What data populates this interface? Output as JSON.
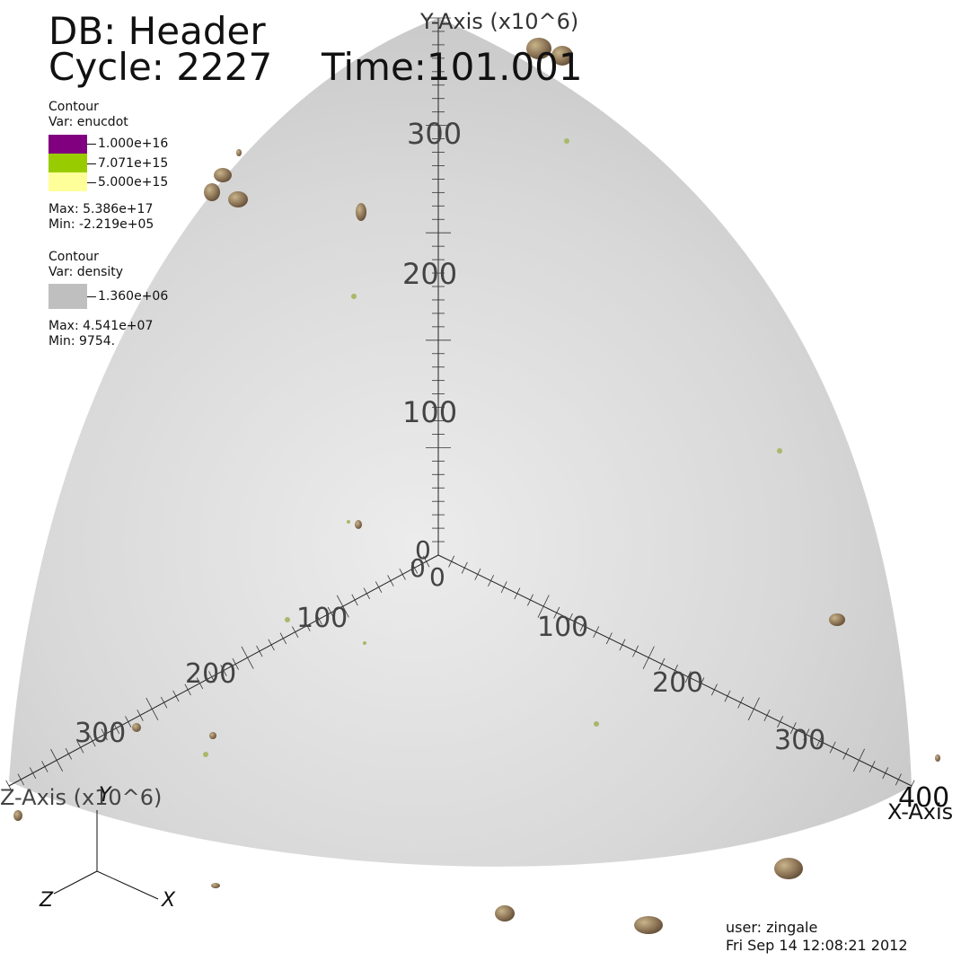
{
  "header": {
    "db_label": "DB: Header",
    "cycle_label": "Cycle: 2227",
    "time_label": "Time:101.001"
  },
  "legend_enucdot": {
    "title": "Contour",
    "var": "Var: enucdot",
    "levels": [
      {
        "label": "1.000e+16",
        "color": "#800080"
      },
      {
        "label": "7.071e+15",
        "color": "#99cc00"
      },
      {
        "label": "5.000e+15",
        "color": "#ffff99"
      }
    ],
    "max": "Max:  5.386e+17",
    "min": "Min: -2.219e+05"
  },
  "legend_density": {
    "title": "Contour",
    "var": "Var: density",
    "levels": [
      {
        "label": "1.360e+06",
        "color": "#bfbfbf"
      }
    ],
    "max": "Max:  4.541e+07",
    "min": "Min:  9754."
  },
  "axes": {
    "y_title": "Y-Axis (x10^6)",
    "z_title": "Z-Axis (x10^6)",
    "x_title": "X-Axis",
    "y_ticks": [
      "0",
      "100",
      "200",
      "300"
    ],
    "z_ticks": [
      "0",
      "100",
      "200",
      "300"
    ],
    "x_ticks": [
      "0",
      "100",
      "200",
      "300",
      "400"
    ]
  },
  "triad": {
    "y_label": "Y",
    "z_label": "Z",
    "x_label": "X"
  },
  "footer": {
    "user": "user: zingale",
    "date": "Fri Sep 14 12:08:21 2012"
  },
  "colors": {
    "density_surface": "#d9d9d9",
    "blob_fill": "#8b7355",
    "axis_line": "#222222"
  }
}
